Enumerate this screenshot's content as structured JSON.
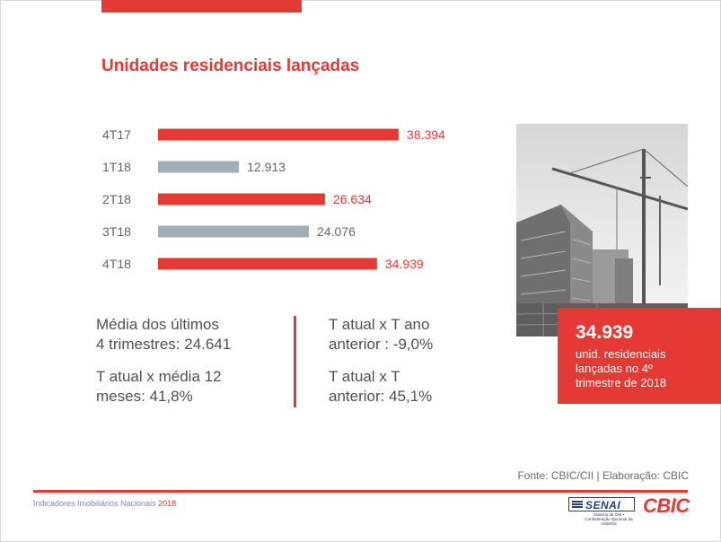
{
  "title": "Unidades residenciais lançadas",
  "chart_data": {
    "type": "bar",
    "orientation": "horizontal",
    "title": "Unidades residenciais lançadas",
    "categories": [
      "4T17",
      "1T18",
      "2T18",
      "3T18",
      "4T18"
    ],
    "values": [
      38394,
      12913,
      26634,
      24076,
      34939
    ],
    "value_labels": [
      "38.394",
      "12.913",
      "26.634",
      "24.076",
      "34.939"
    ],
    "bar_colors": [
      "#e53935",
      "#a3aeb4",
      "#e53935",
      "#a3aeb4",
      "#e53935"
    ],
    "label_colors": [
      "#e53935",
      "#666666",
      "#e53935",
      "#666666",
      "#e53935"
    ],
    "xlim": [
      0,
      40000
    ],
    "grid": false,
    "legend": "none"
  },
  "stats": {
    "left": [
      {
        "line1": "Média dos últimos",
        "line2": "4 trimestres: 24.641"
      },
      {
        "line1": "T atual x média 12",
        "line2": "meses: 41,8%"
      }
    ],
    "right": [
      {
        "line1": "T atual x T ano",
        "line2": "anterior : -9,0%"
      },
      {
        "line1": "T atual x T",
        "line2": "anterior: 45,1%"
      }
    ]
  },
  "highlight": {
    "value": "34.939",
    "line1": "unid. residenciais",
    "line2": "lançadas no 4º",
    "line3": "trimestre de 2018"
  },
  "photo": {
    "icon": "construction-crane-photo"
  },
  "source": "Fonte: CBIC/CII | Elaboração: CBIC",
  "footer": {
    "left_text": "Indicadores Imobiliários Nacionais",
    "year": "2018"
  },
  "logos": {
    "senai": "SENAI",
    "senai_sub": "Sistema da CNI • Confederação Nacional da Indústria",
    "cbic": "CBIC"
  },
  "colors": {
    "accent": "#e53935",
    "gray_bar": "#a3aeb4",
    "text": "#505050"
  }
}
